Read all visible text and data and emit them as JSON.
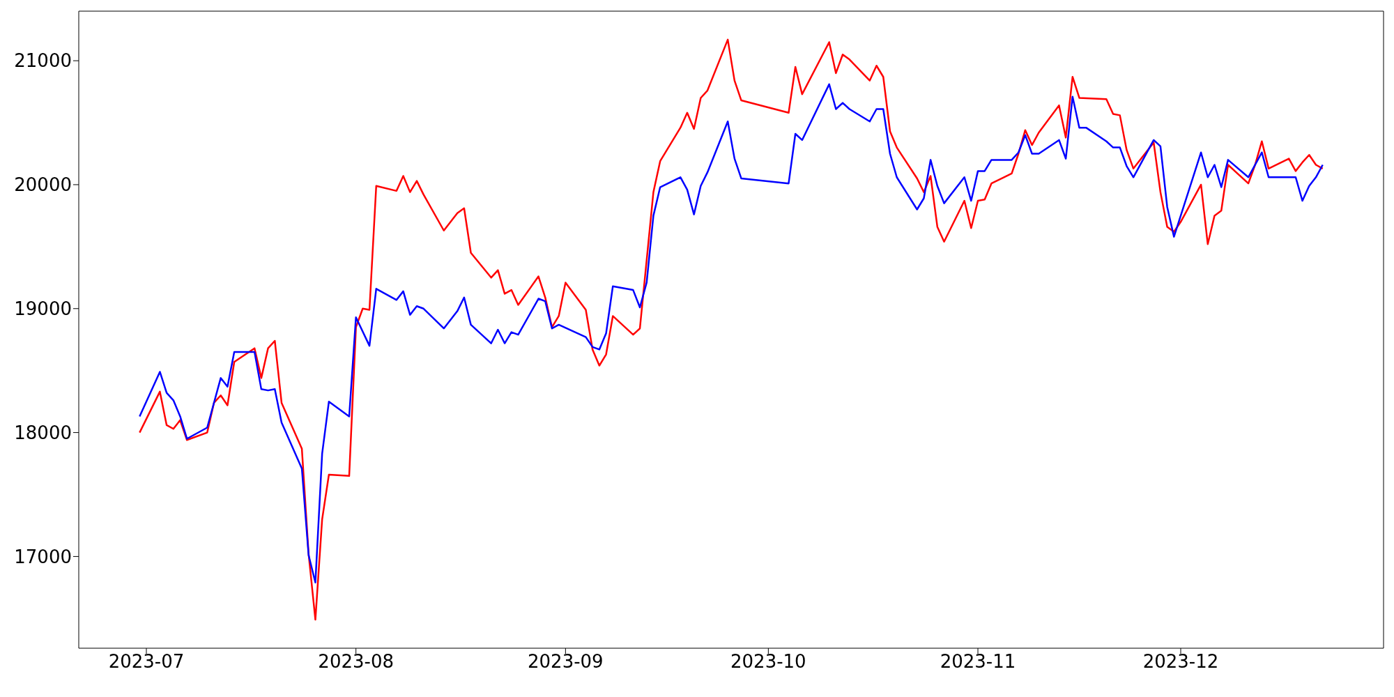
{
  "chart_data": {
    "type": "line",
    "xlim": [
      "2023-06-21",
      "2023-12-31"
    ],
    "xticks": [
      "2023-07",
      "2023-08",
      "2023-09",
      "2023-10",
      "2023-11",
      "2023-12"
    ],
    "ylim": [
      16260,
      21400
    ],
    "yticks": [
      17000,
      18000,
      19000,
      20000,
      21000
    ],
    "series": [
      {
        "color": "#ff0000",
        "x": [
          "2023-06-30",
          "2023-07-03",
          "2023-07-04",
          "2023-07-05",
          "2023-07-06",
          "2023-07-07",
          "2023-07-10",
          "2023-07-11",
          "2023-07-12",
          "2023-07-13",
          "2023-07-14",
          "2023-07-17",
          "2023-07-18",
          "2023-07-19",
          "2023-07-20",
          "2023-07-21",
          "2023-07-24",
          "2023-07-25",
          "2023-07-26",
          "2023-07-27",
          "2023-07-28",
          "2023-07-31",
          "2023-08-01",
          "2023-08-02",
          "2023-08-03",
          "2023-08-04",
          "2023-08-07",
          "2023-08-08",
          "2023-08-09",
          "2023-08-10",
          "2023-08-11",
          "2023-08-14",
          "2023-08-16",
          "2023-08-17",
          "2023-08-18",
          "2023-08-21",
          "2023-08-22",
          "2023-08-23",
          "2023-08-24",
          "2023-08-25",
          "2023-08-28",
          "2023-08-29",
          "2023-08-30",
          "2023-08-31",
          "2023-09-01",
          "2023-09-04",
          "2023-09-05",
          "2023-09-06",
          "2023-09-07",
          "2023-09-08",
          "2023-09-11",
          "2023-09-12",
          "2023-09-14",
          "2023-09-15",
          "2023-09-18",
          "2023-09-19",
          "2023-09-20",
          "2023-09-21",
          "2023-09-22",
          "2023-09-25",
          "2023-09-26",
          "2023-09-27",
          "2023-10-04",
          "2023-10-05",
          "2023-10-06",
          "2023-10-10",
          "2023-10-11",
          "2023-10-12",
          "2023-10-13",
          "2023-10-16",
          "2023-10-17",
          "2023-10-18",
          "2023-10-19",
          "2023-10-20",
          "2023-10-23",
          "2023-10-24",
          "2023-10-25",
          "2023-10-26",
          "2023-10-27",
          "2023-10-30",
          "2023-10-31",
          "2023-11-01",
          "2023-11-02",
          "2023-11-03",
          "2023-11-06",
          "2023-11-07",
          "2023-11-08",
          "2023-11-09",
          "2023-11-10",
          "2023-11-13",
          "2023-11-14",
          "2023-11-15",
          "2023-11-16",
          "2023-11-20",
          "2023-11-21",
          "2023-11-22",
          "2023-11-23",
          "2023-11-24",
          "2023-11-27",
          "2023-11-28",
          "2023-11-29",
          "2023-11-30",
          "2023-12-01",
          "2023-12-04",
          "2023-12-05",
          "2023-12-06",
          "2023-12-07",
          "2023-12-08",
          "2023-12-11",
          "2023-12-12",
          "2023-12-13",
          "2023-12-14",
          "2023-12-17",
          "2023-12-18",
          "2023-12-19",
          "2023-12-20",
          "2023-12-21",
          "2023-12-22"
        ],
        "values": [
          18000,
          18330,
          18060,
          18030,
          18100,
          17940,
          18000,
          18240,
          18300,
          18220,
          18570,
          18680,
          18440,
          18680,
          18740,
          18240,
          17870,
          17020,
          16490,
          17300,
          17660,
          17650,
          18850,
          19000,
          18990,
          19990,
          19950,
          20070,
          19940,
          20030,
          19920,
          19630,
          19770,
          19810,
          19450,
          19250,
          19310,
          19120,
          19150,
          19030,
          19260,
          19090,
          18850,
          18940,
          19210,
          18990,
          18670,
          18540,
          18630,
          18940,
          18790,
          18840,
          19940,
          20190,
          20460,
          20580,
          20450,
          20700,
          20760,
          21170,
          20840,
          20680,
          20580,
          20950,
          20730,
          21150,
          20900,
          21050,
          21010,
          20840,
          20960,
          20870,
          20430,
          20300,
          20050,
          19940,
          20070,
          19660,
          19540,
          19870,
          19650,
          19870,
          19880,
          20010,
          20090,
          20250,
          20440,
          20320,
          20420,
          20640,
          20380,
          20870,
          20700,
          20690,
          20570,
          20560,
          20280,
          20130,
          20340,
          19940,
          19660,
          19620,
          19700,
          20000,
          19520,
          19750,
          19790,
          20160,
          20010,
          20160,
          20350,
          20130,
          20210,
          20110,
          20180,
          20240,
          20160,
          20130
        ]
      },
      {
        "color": "#0000ff",
        "x": [
          "2023-06-30",
          "2023-07-03",
          "2023-07-04",
          "2023-07-05",
          "2023-07-06",
          "2023-07-07",
          "2023-07-10",
          "2023-07-12",
          "2023-07-13",
          "2023-07-14",
          "2023-07-17",
          "2023-07-18",
          "2023-07-19",
          "2023-07-20",
          "2023-07-21",
          "2023-07-24",
          "2023-07-25",
          "2023-07-26",
          "2023-07-27",
          "2023-07-28",
          "2023-07-31",
          "2023-08-01",
          "2023-08-03",
          "2023-08-04",
          "2023-08-07",
          "2023-08-08",
          "2023-08-09",
          "2023-08-10",
          "2023-08-11",
          "2023-08-14",
          "2023-08-16",
          "2023-08-17",
          "2023-08-18",
          "2023-08-21",
          "2023-08-22",
          "2023-08-23",
          "2023-08-24",
          "2023-08-25",
          "2023-08-28",
          "2023-08-29",
          "2023-08-30",
          "2023-08-31",
          "2023-09-04",
          "2023-09-05",
          "2023-09-06",
          "2023-09-07",
          "2023-09-08",
          "2023-09-11",
          "2023-09-12",
          "2023-09-13",
          "2023-09-14",
          "2023-09-15",
          "2023-09-18",
          "2023-09-19",
          "2023-09-20",
          "2023-09-21",
          "2023-09-22",
          "2023-09-25",
          "2023-09-26",
          "2023-09-27",
          "2023-10-04",
          "2023-10-05",
          "2023-10-06",
          "2023-10-10",
          "2023-10-11",
          "2023-10-12",
          "2023-10-13",
          "2023-10-16",
          "2023-10-17",
          "2023-10-18",
          "2023-10-19",
          "2023-10-20",
          "2023-10-23",
          "2023-10-24",
          "2023-10-25",
          "2023-10-26",
          "2023-10-27",
          "2023-10-30",
          "2023-10-31",
          "2023-11-01",
          "2023-11-02",
          "2023-11-03",
          "2023-11-06",
          "2023-11-07",
          "2023-11-08",
          "2023-11-09",
          "2023-11-10",
          "2023-11-13",
          "2023-11-14",
          "2023-11-15",
          "2023-11-16",
          "2023-11-17",
          "2023-11-20",
          "2023-11-21",
          "2023-11-22",
          "2023-11-23",
          "2023-11-24",
          "2023-11-27",
          "2023-11-28",
          "2023-11-29",
          "2023-11-30",
          "2023-12-04",
          "2023-12-05",
          "2023-12-06",
          "2023-12-07",
          "2023-12-08",
          "2023-12-11",
          "2023-12-13",
          "2023-12-14",
          "2023-12-18",
          "2023-12-19",
          "2023-12-20",
          "2023-12-21",
          "2023-12-22"
        ],
        "values": [
          18130,
          18490,
          18320,
          18260,
          18130,
          17950,
          18040,
          18440,
          18370,
          18650,
          18650,
          18350,
          18340,
          18350,
          18080,
          17710,
          17010,
          16790,
          17830,
          18250,
          18130,
          18930,
          18700,
          19160,
          19070,
          19140,
          18950,
          19020,
          19000,
          18840,
          18980,
          19090,
          18870,
          18720,
          18830,
          18720,
          18810,
          18790,
          19080,
          19060,
          18840,
          18870,
          18770,
          18690,
          18670,
          18800,
          19180,
          19150,
          19010,
          19210,
          19750,
          19980,
          20060,
          19960,
          19760,
          19990,
          20100,
          20510,
          20210,
          20050,
          20010,
          20410,
          20360,
          20810,
          20610,
          20660,
          20610,
          20510,
          20610,
          20610,
          20250,
          20060,
          19800,
          19890,
          20200,
          19990,
          19850,
          20060,
          19870,
          20110,
          20110,
          20200,
          20200,
          20260,
          20400,
          20250,
          20250,
          20360,
          20210,
          20710,
          20460,
          20460,
          20350,
          20300,
          20300,
          20150,
          20060,
          20360,
          20310,
          19820,
          19580,
          20260,
          20060,
          20160,
          19980,
          20200,
          20060,
          20260,
          20060,
          20060,
          19870,
          19990,
          20060,
          20160
        ]
      }
    ]
  }
}
